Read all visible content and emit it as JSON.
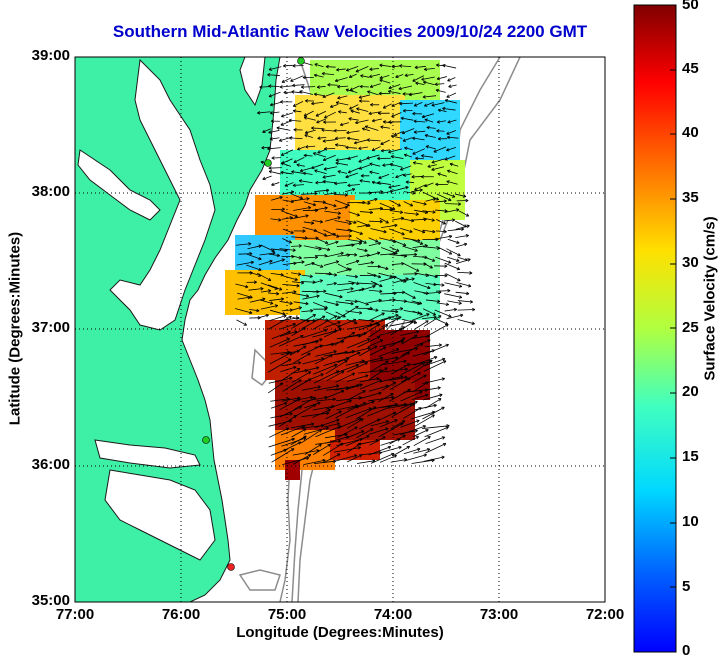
{
  "title": "Southern Mid-Atlantic Raw Velocities 2009/10/24 2200 GMT",
  "xlabel": "Longitude (Degrees:Minutes)",
  "ylabel": "Latitude (Degrees:Minutes)",
  "colorbar_label": "Surface Velocity (cm/s)",
  "x_ticks": [
    "77:00",
    "76:00",
    "75:00",
    "74:00",
    "73:00",
    "72:00"
  ],
  "y_ticks": [
    "39:00",
    "38:00",
    "37:00",
    "36:00",
    "35:00"
  ],
  "colorbar_ticks": [
    "0",
    "5",
    "10",
    "15",
    "20",
    "25",
    "30",
    "35",
    "40",
    "45",
    "50"
  ],
  "colors": {
    "land": "#3ef0a6",
    "coast": "#1a1a1a",
    "bathymetry": "#8c8c8c",
    "grid": "#000000",
    "title": "#0000cc",
    "station_green": "#22cc22",
    "station_red": "#ee2222"
  },
  "map": {
    "lon_range": [
      -77,
      -72
    ],
    "lat_range": [
      35,
      39
    ],
    "colormap": "jet",
    "velocity_range_cms": [
      0,
      50
    ]
  }
}
